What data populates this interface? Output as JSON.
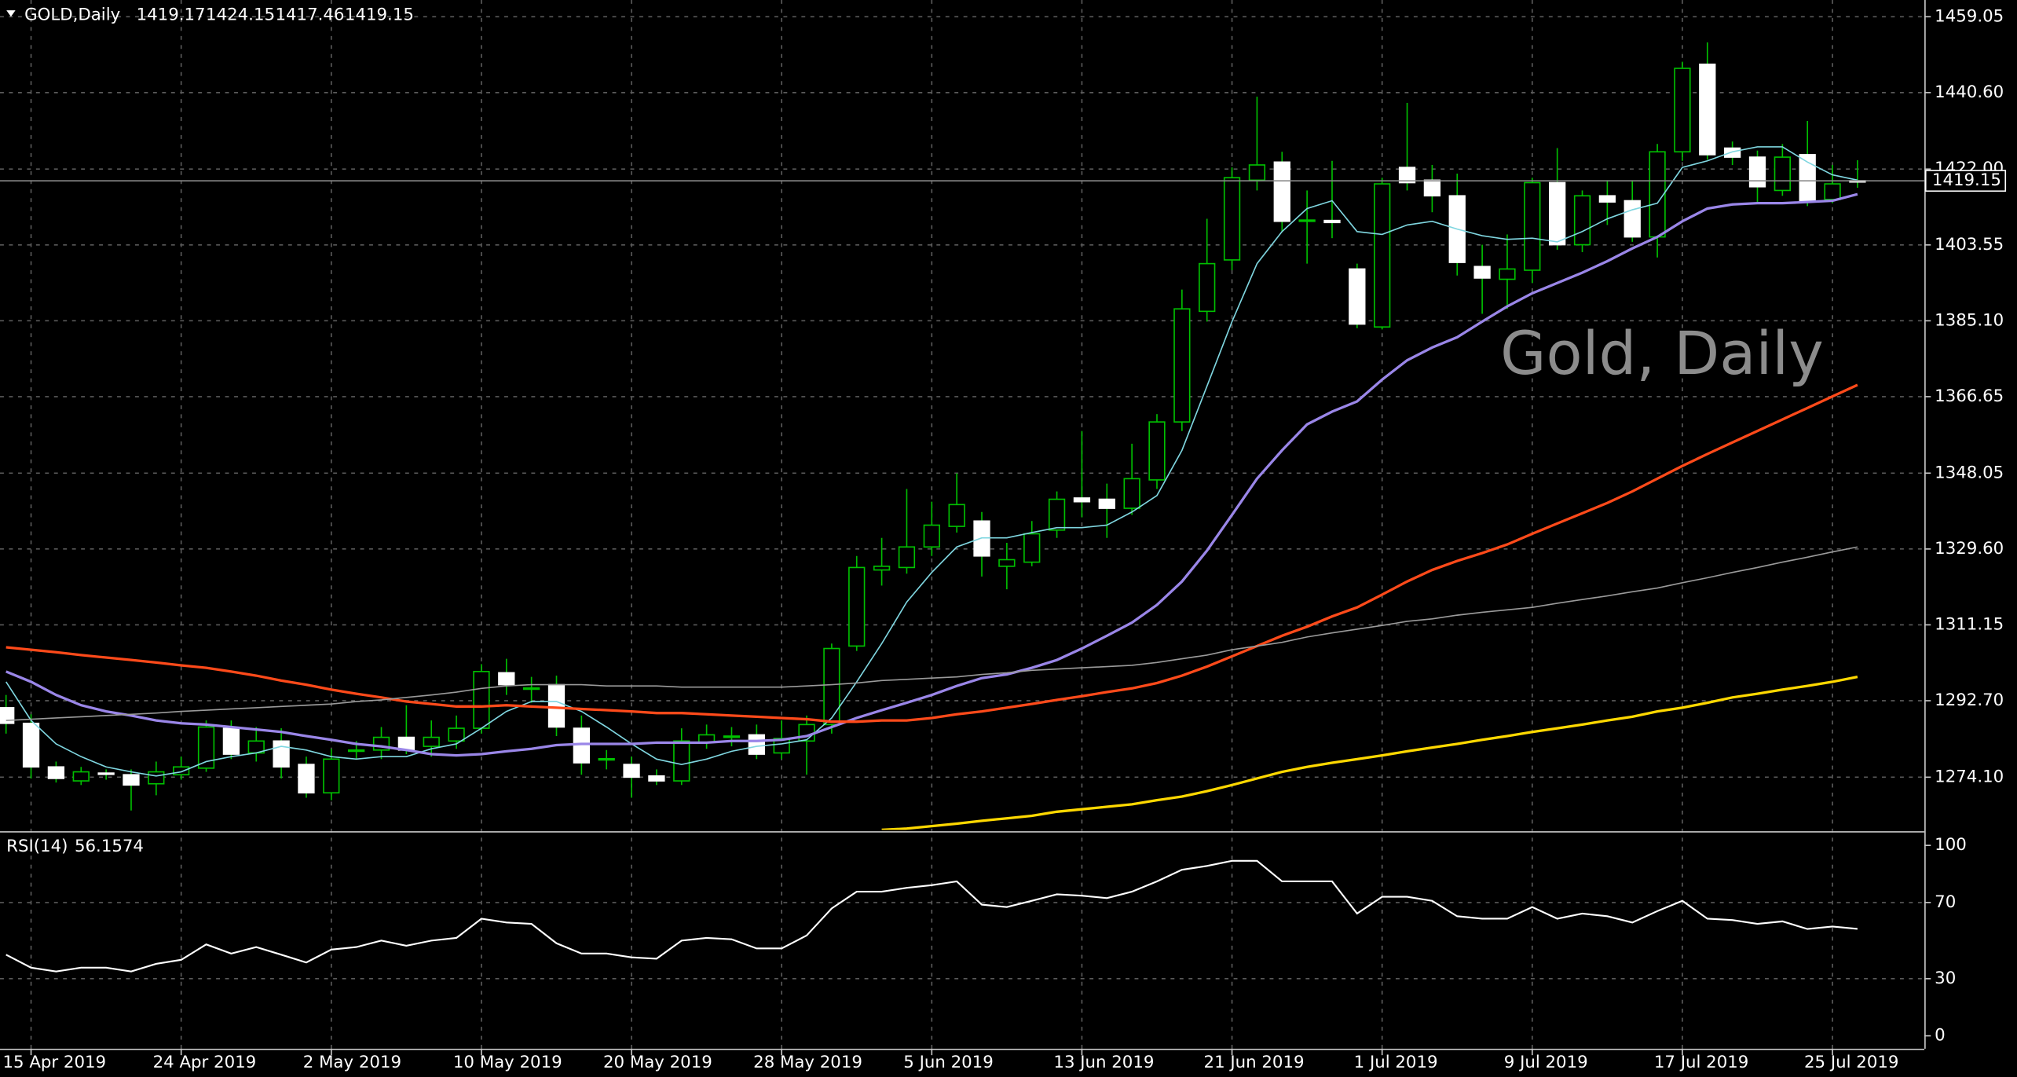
{
  "chart_data": [
    {
      "type": "candlestick",
      "title": "GOLD,Daily",
      "header_values": [
        1419.17,
        1424.15,
        1417.46,
        1419.15
      ],
      "watermark": "Gold, Daily",
      "last_price": 1419.15,
      "up_color": "#00c000",
      "down_color": "#ffffff",
      "wick_color": "#00c000",
      "grid": true,
      "ylim": [
        1261.27,
        1463.12
      ],
      "yticks": [
        1459.05,
        {
          "value": 1440.6,
          "label": "1440.60"
        },
        {
          "value": 1422,
          "label": "1422.00"
        },
        1403.55,
        {
          "value": 1385.1,
          "label": "1385.10"
        },
        1366.65,
        1348.05,
        {
          "value": 1329.6,
          "label": "1329.60"
        },
        1311.15,
        {
          "value": 1292.7,
          "label": "1292.70"
        },
        {
          "value": 1274.1,
          "label": "1274.10"
        }
      ],
      "categories": [
        null,
        "15 Apr 2019",
        null,
        null,
        null,
        null,
        null,
        "24 Apr 2019",
        null,
        null,
        null,
        null,
        null,
        "2 May 2019",
        null,
        null,
        null,
        null,
        null,
        "10 May 2019",
        null,
        null,
        null,
        null,
        null,
        "20 May 2019",
        null,
        null,
        null,
        null,
        null,
        "28 May 2019",
        null,
        null,
        null,
        null,
        null,
        "5 Jun 2019",
        null,
        null,
        null,
        null,
        null,
        "13 Jun 2019",
        null,
        null,
        null,
        null,
        null,
        "21 Jun 2019",
        null,
        null,
        null,
        null,
        null,
        "1 Jul 2019",
        null,
        null,
        null,
        null,
        null,
        "9 Jul 2019",
        null,
        null,
        null,
        null,
        null,
        "17 Jul 2019",
        null,
        null,
        null,
        null,
        null,
        "25 Jul 2019",
        null
      ],
      "open": [
        1291.0,
        1287.2,
        1276.6,
        1273.2,
        1275.1,
        1274.7,
        1272.5,
        1274.7,
        1276.3,
        1286.0,
        1280.0,
        1282.9,
        1277.2,
        1270.3,
        1280.6,
        1280.7,
        1283.8,
        1281.6,
        1282.9,
        1286.0,
        1299.5,
        1295.6,
        1296.6,
        1286.0,
        1278.3,
        1277.2,
        1274.4,
        1273.2,
        1282.6,
        1284.0,
        1284.4,
        1280.0,
        1282.9,
        1286.9,
        1306.0,
        1324.5,
        1325.1,
        1330.1,
        1335.1,
        1336.4,
        1325.4,
        1326.4,
        1334.2,
        1342.0,
        1341.7,
        1339.5,
        1346.4,
        1360.5,
        1387.4,
        1399.9,
        1419.3,
        1423.7,
        1409.5,
        1409.5,
        1397.7,
        1383.6,
        1422.4,
        1419.3,
        1415.5,
        1398.3,
        1395.2,
        1397.4,
        1418.7,
        1403.6,
        1415.5,
        1414.3,
        1405.5,
        1426.2,
        1447.5,
        1427.1,
        1424.9,
        1416.8,
        1425.5,
        1414.6,
        1419.17
      ],
      "high": [
        1294.1,
        1289.4,
        1277.9,
        1276.6,
        1276.0,
        1276.0,
        1277.9,
        1279.1,
        1287.9,
        1287.9,
        1286.3,
        1286.0,
        1279.1,
        1281.0,
        1282.9,
        1286.3,
        1291.6,
        1287.9,
        1289.1,
        1301.6,
        1302.9,
        1298.5,
        1298.8,
        1289.1,
        1280.7,
        1279.1,
        1276.0,
        1286.0,
        1286.9,
        1286.3,
        1286.9,
        1287.9,
        1289.1,
        1306.6,
        1327.9,
        1332.3,
        1344.2,
        1341.1,
        1348.0,
        1338.6,
        1331.1,
        1336.4,
        1343.6,
        1358.3,
        1345.5,
        1355.2,
        1362.4,
        1392.7,
        1409.9,
        1422.4,
        1439.6,
        1426.2,
        1416.8,
        1424.0,
        1399.0,
        1419.9,
        1438.1,
        1423.0,
        1420.9,
        1403.6,
        1406.1,
        1419.9,
        1427.1,
        1416.8,
        1419.3,
        1419.3,
        1428.1,
        1448.1,
        1452.8,
        1428.7,
        1426.5,
        1428.1,
        1433.7,
        1423.0,
        1424.15
      ],
      "low": [
        1284.7,
        1273.8,
        1272.8,
        1272.2,
        1273.5,
        1266.0,
        1269.7,
        1273.5,
        1275.4,
        1278.5,
        1277.9,
        1273.8,
        1269.1,
        1268.5,
        1278.5,
        1278.5,
        1279.7,
        1279.1,
        1281.0,
        1284.7,
        1294.1,
        1292.2,
        1284.1,
        1274.7,
        1276.0,
        1269.1,
        1272.2,
        1272.2,
        1281.0,
        1281.6,
        1278.5,
        1278.5,
        1274.7,
        1284.7,
        1304.8,
        1320.7,
        1323.6,
        1327.9,
        1333.6,
        1322.9,
        1319.8,
        1325.4,
        1332.3,
        1337.3,
        1332.3,
        1337.9,
        1344.2,
        1358.3,
        1384.9,
        1397.4,
        1416.8,
        1406.8,
        1399.0,
        1405.2,
        1383.3,
        1383.0,
        1416.8,
        1411.5,
        1396.1,
        1386.8,
        1388.0,
        1394.3,
        1402.4,
        1401.8,
        1408.4,
        1404.3,
        1400.5,
        1424.0,
        1424.3,
        1423.0,
        1413.7,
        1415.5,
        1413.0,
        1413.7,
        1417.46
      ],
      "close": [
        1287.2,
        1276.6,
        1273.8,
        1275.4,
        1274.8,
        1272.2,
        1275.4,
        1276.6,
        1286.3,
        1279.7,
        1282.9,
        1276.6,
        1270.3,
        1278.5,
        1280.7,
        1283.8,
        1280.7,
        1283.8,
        1286.0,
        1299.8,
        1296.6,
        1295.8,
        1286.3,
        1277.6,
        1278.6,
        1274.1,
        1273.2,
        1282.9,
        1284.4,
        1284.1,
        1279.7,
        1283.5,
        1286.9,
        1305.4,
        1325.1,
        1325.4,
        1330.1,
        1335.4,
        1340.4,
        1327.9,
        1327.0,
        1333.3,
        1341.7,
        1341.1,
        1339.5,
        1346.7,
        1360.5,
        1388.0,
        1399.0,
        1419.9,
        1423.0,
        1409.3,
        1409.6,
        1409.0,
        1384.3,
        1418.4,
        1418.7,
        1415.5,
        1399.3,
        1395.5,
        1397.7,
        1418.7,
        1403.6,
        1415.5,
        1414.0,
        1405.5,
        1426.2,
        1446.5,
        1425.5,
        1424.9,
        1417.7,
        1424.9,
        1414.3,
        1418.4,
        1419.15
      ],
      "series": [
        {
          "color": "#7fd6e0",
          "values": [
            1297.3,
            1287.9,
            1282.2,
            1279.1,
            1276.6,
            1275.4,
            1274.4,
            1275.4,
            1277.9,
            1279.1,
            1280.0,
            1281.6,
            1280.7,
            1279.1,
            1278.5,
            1279.1,
            1279.1,
            1281.0,
            1282.2,
            1286.0,
            1290.1,
            1292.5,
            1292.5,
            1290.1,
            1286.3,
            1282.2,
            1278.5,
            1277.2,
            1278.5,
            1280.4,
            1281.6,
            1282.2,
            1283.2,
            1288.5,
            1297.3,
            1306.6,
            1316.7,
            1323.9,
            1330.1,
            1332.3,
            1332.3,
            1333.6,
            1334.8,
            1334.8,
            1335.4,
            1338.6,
            1342.6,
            1353.6,
            1369.2,
            1384.9,
            1399.0,
            1406.8,
            1412.4,
            1414.3,
            1406.8,
            1406.1,
            1408.4,
            1409.3,
            1407.4,
            1405.8,
            1404.9,
            1405.2,
            1404.3,
            1406.8,
            1409.9,
            1412.1,
            1413.7,
            1422.4,
            1424.0,
            1426.2,
            1427.4,
            1427.4,
            1423.7,
            1420.6,
            1419.3
          ]
        },
        {
          "color": "#9a86e8",
          "values": [
            1299.8,
            1297.3,
            1294.1,
            1291.6,
            1290.1,
            1289.1,
            1287.9,
            1287.2,
            1286.9,
            1286.3,
            1285.7,
            1285.1,
            1284.1,
            1283.2,
            1282.2,
            1281.6,
            1280.7,
            1279.7,
            1279.4,
            1279.7,
            1280.4,
            1281.0,
            1281.9,
            1282.2,
            1282.2,
            1282.2,
            1282.5,
            1282.5,
            1282.5,
            1282.9,
            1282.9,
            1283.2,
            1284.1,
            1286.3,
            1288.5,
            1290.4,
            1292.2,
            1294.1,
            1296.3,
            1298.2,
            1299.1,
            1300.7,
            1302.6,
            1305.4,
            1308.5,
            1311.7,
            1316.0,
            1321.7,
            1329.2,
            1337.9,
            1346.7,
            1353.6,
            1359.9,
            1363.0,
            1365.5,
            1370.8,
            1375.5,
            1378.6,
            1381.1,
            1384.9,
            1388.6,
            1391.8,
            1394.3,
            1396.8,
            1399.6,
            1402.7,
            1405.5,
            1409.3,
            1412.4,
            1413.4,
            1413.7,
            1413.7,
            1414.0,
            1414.3,
            1415.9
          ]
        },
        {
          "color": "#ff4a1a",
          "values": [
            1305.7,
            1305.1,
            1304.5,
            1303.8,
            1303.2,
            1302.6,
            1302.0,
            1301.3,
            1300.7,
            1299.8,
            1298.8,
            1297.6,
            1296.6,
            1295.4,
            1294.4,
            1293.5,
            1292.5,
            1291.9,
            1291.3,
            1291.3,
            1291.6,
            1291.3,
            1291.0,
            1290.7,
            1290.4,
            1290.1,
            1289.7,
            1289.7,
            1289.4,
            1289.1,
            1288.8,
            1288.5,
            1288.2,
            1287.6,
            1287.6,
            1287.9,
            1287.9,
            1288.5,
            1289.4,
            1290.1,
            1291.0,
            1291.9,
            1292.9,
            1293.8,
            1294.8,
            1295.7,
            1297.0,
            1298.8,
            1301.0,
            1303.5,
            1306.0,
            1308.5,
            1310.7,
            1313.2,
            1315.4,
            1318.5,
            1321.7,
            1324.5,
            1326.7,
            1328.6,
            1330.7,
            1333.3,
            1335.8,
            1338.3,
            1340.8,
            1343.6,
            1346.7,
            1349.8,
            1352.7,
            1355.5,
            1358.3,
            1361.1,
            1363.9,
            1366.7,
            1369.5
          ]
        },
        {
          "color": "#9a9a9a",
          "values": [
            1287.9,
            1288.2,
            1288.5,
            1288.8,
            1289.1,
            1289.4,
            1289.7,
            1290.1,
            1290.4,
            1290.7,
            1291.0,
            1291.3,
            1291.6,
            1291.9,
            1292.5,
            1292.9,
            1293.5,
            1294.1,
            1294.8,
            1295.7,
            1296.3,
            1296.6,
            1296.6,
            1296.6,
            1296.3,
            1296.3,
            1296.3,
            1296.0,
            1296.0,
            1296.0,
            1296.0,
            1296.0,
            1296.3,
            1296.6,
            1297.0,
            1297.6,
            1297.9,
            1298.2,
            1298.5,
            1299.1,
            1299.5,
            1300.1,
            1300.4,
            1300.7,
            1301.0,
            1301.3,
            1302.0,
            1302.9,
            1303.8,
            1305.1,
            1306.0,
            1306.9,
            1308.2,
            1309.2,
            1310.1,
            1311.0,
            1312.0,
            1312.6,
            1313.5,
            1314.2,
            1314.8,
            1315.4,
            1316.4,
            1317.3,
            1318.2,
            1319.2,
            1320.1,
            1321.4,
            1322.6,
            1323.9,
            1325.1,
            1326.4,
            1327.6,
            1328.9,
            1330.1
          ]
        },
        {
          "color": "#ffd800",
          "values": [
            null,
            null,
            null,
            null,
            null,
            null,
            null,
            null,
            null,
            null,
            null,
            null,
            null,
            null,
            null,
            null,
            null,
            null,
            null,
            null,
            null,
            null,
            null,
            null,
            null,
            null,
            null,
            null,
            null,
            null,
            null,
            null,
            null,
            null,
            null,
            1261.3,
            1261.6,
            1262.2,
            1262.8,
            1263.5,
            1264.1,
            1264.7,
            1265.7,
            1266.3,
            1266.9,
            1267.5,
            1268.5,
            1269.4,
            1270.7,
            1272.2,
            1273.8,
            1275.4,
            1276.6,
            1277.6,
            1278.5,
            1279.4,
            1280.4,
            1281.3,
            1282.2,
            1283.2,
            1284.1,
            1285.1,
            1286.0,
            1286.9,
            1287.9,
            1288.8,
            1290.1,
            1291.0,
            1292.2,
            1293.5,
            1294.4,
            1295.4,
            1296.3,
            1297.3,
            1298.5
          ]
        }
      ]
    },
    {
      "type": "line",
      "title": "RSI(14)",
      "last_value": 56.1574,
      "color": "#ffffff",
      "ylim": [
        0,
        100
      ],
      "yticks": [
        100,
        70,
        30,
        0
      ],
      "values": [
        42.6,
        35.8,
        33.8,
        35.8,
        35.8,
        33.8,
        37.8,
        39.9,
        48.0,
        43.2,
        46.6,
        42.6,
        38.5,
        45.3,
        46.6,
        50.0,
        47.3,
        50.0,
        51.4,
        61.5,
        59.5,
        58.8,
        48.6,
        43.2,
        43.2,
        41.2,
        40.5,
        50.0,
        51.4,
        50.7,
        45.9,
        45.9,
        52.7,
        66.9,
        75.7,
        75.7,
        77.7,
        79.1,
        81.1,
        68.9,
        67.6,
        70.9,
        74.3,
        73.6,
        72.3,
        75.7,
        81.1,
        87.2,
        89.2,
        91.9,
        91.9,
        81.1,
        81.1,
        81.1,
        64.2,
        73.0,
        73.0,
        70.9,
        62.8,
        61.5,
        61.5,
        67.6,
        61.5,
        64.2,
        62.8,
        59.5,
        65.5,
        70.9,
        61.5,
        60.8,
        58.8,
        60.1,
        56.1,
        57.4,
        56.1574
      ]
    }
  ]
}
